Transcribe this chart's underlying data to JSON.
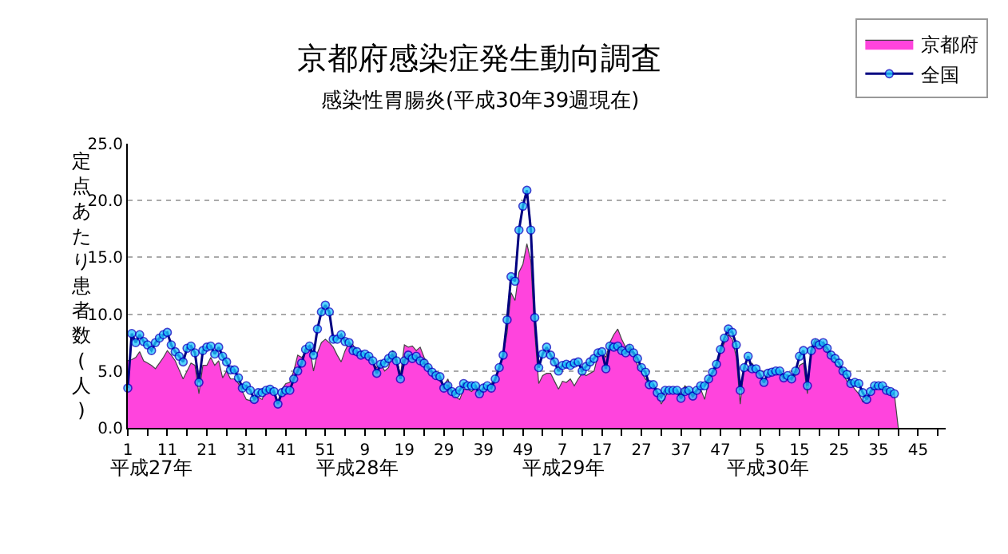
{
  "chart_data": {
    "type": "area",
    "title": "京都府感染症発生動向調査",
    "subtitle": "感染性胃腸炎(平成30年39週現在)",
    "ylabel": "定点あたり患者数(人)",
    "annotations": [
      "平成27年",
      "平成28年",
      "平成29年",
      "平成30年"
    ],
    "categories": [
      "1",
      null,
      null,
      null,
      null,
      null,
      null,
      null,
      null,
      null,
      "11",
      null,
      null,
      null,
      null,
      null,
      null,
      null,
      null,
      null,
      "21",
      null,
      null,
      null,
      null,
      null,
      null,
      null,
      null,
      null,
      "31",
      null,
      null,
      null,
      null,
      null,
      null,
      null,
      null,
      null,
      "41",
      null,
      null,
      null,
      null,
      null,
      null,
      null,
      null,
      null,
      "51",
      null,
      null,
      null,
      null,
      null,
      null,
      null,
      null,
      null,
      "9",
      null,
      null,
      null,
      null,
      null,
      null,
      null,
      null,
      null,
      "19",
      null,
      null,
      null,
      null,
      null,
      null,
      null,
      null,
      null,
      "29",
      null,
      null,
      null,
      null,
      null,
      null,
      null,
      null,
      null,
      "39",
      null,
      null,
      null,
      null,
      null,
      null,
      null,
      null,
      null,
      "49",
      null,
      null,
      null,
      null,
      null,
      null,
      null,
      null,
      null,
      "7",
      null,
      null,
      null,
      null,
      null,
      null,
      null,
      null,
      null,
      "17",
      null,
      null,
      null,
      null,
      null,
      null,
      null,
      null,
      null,
      "27",
      null,
      null,
      null,
      null,
      null,
      null,
      null,
      null,
      null,
      "37",
      null,
      null,
      null,
      null,
      null,
      null,
      null,
      null,
      null,
      "47",
      null,
      null,
      null,
      null,
      null,
      null,
      null,
      null,
      null,
      "5",
      null,
      null,
      null,
      null,
      null,
      null,
      null,
      null,
      null,
      "15",
      null,
      null,
      null,
      null,
      null,
      null,
      null,
      null,
      null,
      "25",
      null,
      null,
      null,
      null,
      null,
      null,
      null,
      null,
      null,
      "35",
      null,
      null,
      null,
      null,
      null,
      null,
      null,
      null,
      null,
      "45",
      null,
      null,
      null,
      null,
      null,
      null,
      null
    ],
    "series": [
      {
        "name": "京都府",
        "color": "#ff44dd",
        "values": [
          5.9,
          6.0,
          6.2,
          6.7,
          5.9,
          5.7,
          5.5,
          5.2,
          5.7,
          6.2,
          6.8,
          6.4,
          5.9,
          5.1,
          4.3,
          5.0,
          5.7,
          5.5,
          3.0,
          5.5,
          5.5,
          6.2,
          5.5,
          5.9,
          4.4,
          5.0,
          4.3,
          4.3,
          3.9,
          3.2,
          2.5,
          2.4,
          2.4,
          2.7,
          2.5,
          3.4,
          3.4,
          3.2,
          2.3,
          3.4,
          3.9,
          4.0,
          5.0,
          6.4,
          6.2,
          6.6,
          7.1,
          5.0,
          6.6,
          7.5,
          7.8,
          7.5,
          7.1,
          6.4,
          5.8,
          6.8,
          7.5,
          7.3,
          6.6,
          6.2,
          6.4,
          6.2,
          5.7,
          5.3,
          5.7,
          5.0,
          5.3,
          6.8,
          6.2,
          4.6,
          7.3,
          7.1,
          7.2,
          6.8,
          7.1,
          6.2,
          5.5,
          5.0,
          4.6,
          4.1,
          3.7,
          4.3,
          3.2,
          2.7,
          2.5,
          3.4,
          3.4,
          3.2,
          3.5,
          3.2,
          3.4,
          3.4,
          3.9,
          4.3,
          5.3,
          6.4,
          8.4,
          11.9,
          11.2,
          13.7,
          14.4,
          16.2,
          14.7,
          8.4,
          3.9,
          4.6,
          4.8,
          4.8,
          4.1,
          3.4,
          4.1,
          4.0,
          4.3,
          3.7,
          4.3,
          4.8,
          4.6,
          4.8,
          5.0,
          6.4,
          6.6,
          6.2,
          7.5,
          8.2,
          8.7,
          7.8,
          7.1,
          7.3,
          6.6,
          5.5,
          4.9,
          4.3,
          4.0,
          3.7,
          3.0,
          2.1,
          2.7,
          3.3,
          3.2,
          3.0,
          3.0,
          3.7,
          3.4,
          3.0,
          3.4,
          3.4,
          2.5,
          4.1,
          4.8,
          5.3,
          6.6,
          7.5,
          8.2,
          7.8,
          6.2,
          2.1,
          5.5,
          5.0,
          5.7,
          5.0,
          4.6,
          4.1,
          4.8,
          5.0,
          4.8,
          5.0,
          4.6,
          4.3,
          4.3,
          4.6,
          5.5,
          5.7,
          3.0,
          7.1,
          7.8,
          7.5,
          7.3,
          6.6,
          6.2,
          5.7,
          5.3,
          4.8,
          4.1,
          3.9,
          3.4,
          3.0,
          2.3,
          2.5,
          3.2,
          3.4,
          3.5,
          3.4,
          3.2,
          3.0,
          3.0,
          0.0,
          null,
          null,
          null,
          null,
          null,
          null,
          null,
          null,
          null,
          null,
          null,
          null
        ]
      },
      {
        "name": "全国",
        "type": "line",
        "marker": "circle",
        "color": "#1ec8ff",
        "values": [
          3.5,
          8.3,
          7.5,
          8.2,
          7.6,
          7.3,
          6.8,
          7.5,
          7.9,
          8.2,
          8.4,
          7.3,
          6.7,
          6.3,
          5.8,
          7.0,
          7.2,
          6.6,
          4.0,
          6.8,
          7.1,
          7.2,
          6.5,
          7.1,
          6.3,
          5.8,
          5.1,
          5.1,
          4.4,
          3.5,
          3.7,
          3.3,
          2.5,
          3.1,
          3.1,
          3.3,
          3.4,
          3.2,
          2.1,
          3.1,
          3.3,
          3.3,
          4.3,
          5.0,
          5.7,
          6.9,
          7.2,
          6.4,
          8.7,
          10.2,
          10.8,
          10.2,
          7.8,
          7.8,
          8.2,
          7.6,
          7.5,
          6.8,
          6.7,
          6.4,
          6.5,
          6.3,
          5.9,
          4.8,
          5.6,
          5.7,
          6.1,
          6.4,
          5.9,
          4.3,
          5.9,
          6.4,
          6.1,
          6.3,
          5.9,
          5.7,
          5.3,
          4.9,
          4.6,
          4.5,
          3.5,
          3.7,
          3.2,
          3.0,
          3.3,
          3.9,
          3.7,
          3.7,
          3.7,
          3.0,
          3.5,
          3.7,
          3.5,
          4.3,
          5.3,
          6.4,
          9.5,
          13.3,
          12.9,
          17.4,
          19.5,
          20.9,
          17.4,
          9.7,
          5.3,
          6.5,
          7.1,
          6.4,
          5.8,
          5.0,
          5.5,
          5.6,
          5.5,
          5.7,
          5.8,
          5.0,
          5.4,
          5.8,
          6.1,
          6.6,
          6.7,
          5.2,
          7.2,
          7.1,
          7.2,
          6.8,
          6.6,
          7.0,
          6.6,
          6.1,
          5.3,
          4.9,
          3.8,
          3.8,
          3.1,
          2.7,
          3.3,
          3.3,
          3.3,
          3.3,
          2.6,
          3.2,
          3.3,
          2.8,
          3.3,
          3.7,
          3.7,
          4.3,
          4.9,
          5.6,
          6.9,
          7.9,
          8.7,
          8.4,
          7.3,
          3.3,
          5.3,
          6.3,
          5.2,
          5.2,
          4.7,
          4.0,
          4.8,
          4.9,
          5.0,
          5.0,
          4.4,
          4.6,
          4.3,
          5.0,
          6.3,
          6.8,
          3.7,
          6.8,
          7.5,
          7.3,
          7.5,
          7.0,
          6.4,
          6.1,
          5.7,
          5.0,
          4.7,
          3.9,
          4.0,
          3.9,
          3.1,
          2.5,
          3.2,
          3.7,
          3.7,
          3.7,
          3.3,
          3.2,
          3.0,
          null,
          null,
          null,
          null,
          null,
          null,
          null,
          null,
          null,
          null,
          null,
          null,
          null
        ]
      }
    ],
    "ylim": [
      0,
      25
    ],
    "yticks": [
      {
        "value": 0,
        "label": "0.0"
      },
      {
        "value": 5,
        "label": "5.0"
      },
      {
        "value": 10,
        "label": "10.0"
      },
      {
        "value": 15,
        "label": "15.0"
      },
      {
        "value": 20,
        "label": "20.0"
      },
      {
        "value": 25,
        "label": "25.0"
      }
    ],
    "grid": "y",
    "legend": "top right"
  }
}
